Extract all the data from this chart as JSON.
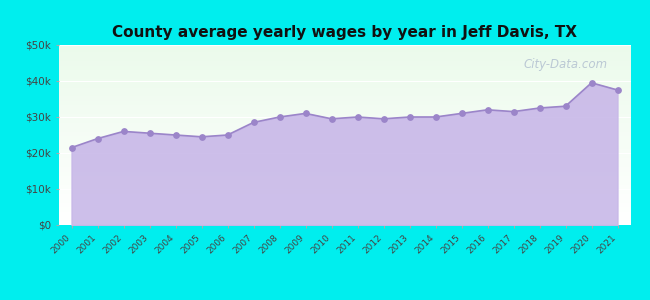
{
  "title": "County average yearly wages by year in Jeff Davis, TX",
  "years": [
    2000,
    2001,
    2002,
    2003,
    2004,
    2005,
    2006,
    2007,
    2008,
    2009,
    2010,
    2011,
    2012,
    2013,
    2014,
    2015,
    2016,
    2017,
    2018,
    2019,
    2020,
    2021
  ],
  "values": [
    21500,
    24000,
    26000,
    25500,
    25000,
    24500,
    25000,
    28500,
    30000,
    31000,
    29500,
    30000,
    29500,
    30000,
    30000,
    31000,
    32000,
    31500,
    32500,
    33000,
    39500,
    37500
  ],
  "ylim": [
    0,
    50000
  ],
  "yticks": [
    0,
    10000,
    20000,
    30000,
    40000,
    50000
  ],
  "ytick_labels": [
    "$0",
    "$10k",
    "$20k",
    "$30k",
    "$40k",
    "$50k"
  ],
  "fill_color": "#c8b8e8",
  "line_color": "#9b85c9",
  "dot_color": "#9b85c9",
  "outer_bg": "#00eeee",
  "title_fontsize": 11,
  "watermark": "City-Data.com"
}
